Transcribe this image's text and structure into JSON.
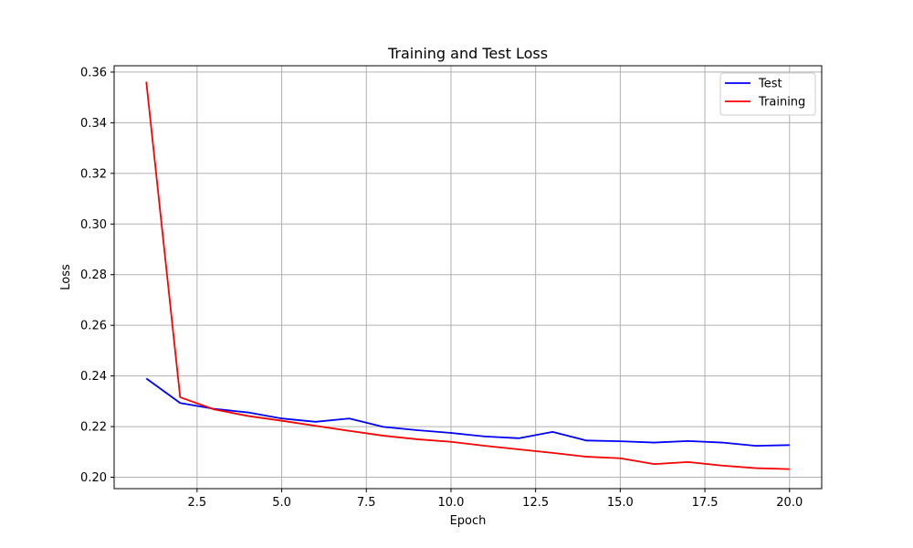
{
  "chart_data": {
    "type": "line",
    "title": "Training and Test Loss",
    "xlabel": "Epoch",
    "ylabel": "Loss",
    "xlim": [
      0.05,
      20.95
    ],
    "ylim": [
      0.1955,
      0.3625
    ],
    "xticks": [
      2.5,
      5.0,
      7.5,
      10.0,
      12.5,
      15.0,
      17.5,
      20.0
    ],
    "xtick_labels": [
      "2.5",
      "5.0",
      "7.5",
      "10.0",
      "12.5",
      "15.0",
      "17.5",
      "20.0"
    ],
    "yticks": [
      0.2,
      0.22,
      0.24,
      0.26,
      0.28,
      0.3,
      0.32,
      0.34,
      0.36
    ],
    "ytick_labels": [
      "0.20",
      "0.22",
      "0.24",
      "0.26",
      "0.28",
      "0.30",
      "0.32",
      "0.34",
      "0.36"
    ],
    "grid": true,
    "legend_position": "top-right",
    "x": [
      1,
      2,
      3,
      4,
      5,
      6,
      7,
      8,
      9,
      10,
      11,
      12,
      13,
      14,
      15,
      16,
      17,
      18,
      19,
      20
    ],
    "series": [
      {
        "name": "Test",
        "color": "#0000ff",
        "values": [
          0.239,
          0.2293,
          0.227,
          0.2256,
          0.2232,
          0.2219,
          0.2232,
          0.2199,
          0.2186,
          0.2175,
          0.2161,
          0.2154,
          0.2179,
          0.2145,
          0.2142,
          0.2137,
          0.2143,
          0.2137,
          0.2124,
          0.2127
        ]
      },
      {
        "name": "Training",
        "color": "#ff0000",
        "values": [
          0.3562,
          0.2316,
          0.2268,
          0.2242,
          0.2223,
          0.2203,
          0.2183,
          0.2164,
          0.215,
          0.214,
          0.2124,
          0.211,
          0.2096,
          0.2081,
          0.2075,
          0.2052,
          0.206,
          0.2046,
          0.2036,
          0.2032
        ]
      }
    ]
  }
}
